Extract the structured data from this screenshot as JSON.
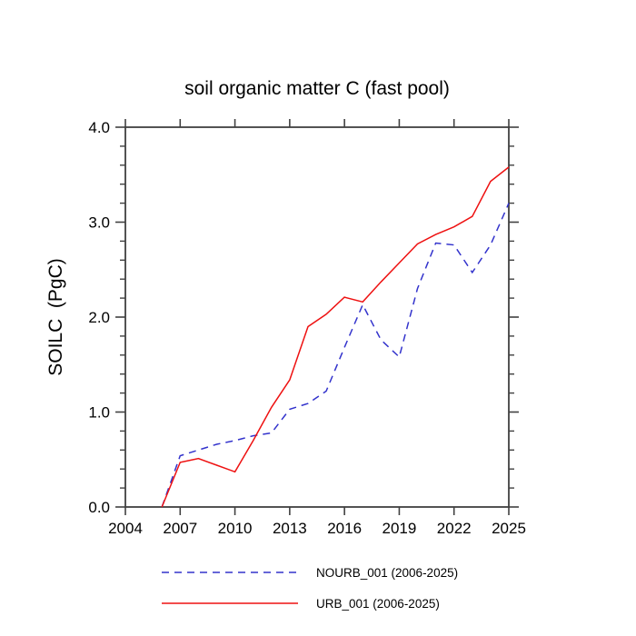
{
  "page": {
    "background": "#ffffff"
  },
  "chart_data": {
    "type": "line",
    "title": "soil organic matter C (fast pool)",
    "ylabel": "SOILC  (PgC)",
    "xlim": [
      2004,
      2025
    ],
    "ylim": [
      0.0,
      4.0
    ],
    "x_major_ticks": [
      2004,
      2007,
      2010,
      2013,
      2016,
      2019,
      2022,
      2025
    ],
    "x_tick_labels": [
      "2004",
      "2007",
      "2010",
      "2013",
      "2016",
      "2019",
      "2022",
      "2025"
    ],
    "y_major_ticks": [
      0.0,
      1.0,
      2.0,
      3.0,
      4.0
    ],
    "y_tick_labels": [
      "0.0",
      "1.0",
      "2.0",
      "3.0",
      "4.0"
    ],
    "y_minor_step": 0.2,
    "grid": false,
    "legend_position": "below-plot",
    "axis_color": "#404040",
    "text_color": "#000000",
    "x": [
      2006,
      2007,
      2008,
      2009,
      2010,
      2011,
      2012,
      2013,
      2014,
      2015,
      2016,
      2017,
      2018,
      2019,
      2020,
      2021,
      2022,
      2023,
      2024,
      2025
    ],
    "series": [
      {
        "name": "NOURB_001 (2006-2025)",
        "color": "#3333cc",
        "style": "dashed",
        "values": [
          0.0,
          0.54,
          0.6,
          0.66,
          0.7,
          0.75,
          0.78,
          1.03,
          1.09,
          1.22,
          1.68,
          2.13,
          1.76,
          1.58,
          2.3,
          2.78,
          2.76,
          2.47,
          2.76,
          3.2
        ]
      },
      {
        "name": "URB_001 (2006-2025)",
        "color": "#ee1111",
        "style": "solid",
        "values": [
          0.0,
          0.47,
          0.51,
          0.44,
          0.37,
          0.7,
          1.05,
          1.34,
          1.9,
          2.03,
          2.21,
          2.16,
          2.37,
          2.57,
          2.77,
          2.87,
          2.95,
          3.06,
          3.43,
          3.58
        ]
      }
    ]
  }
}
